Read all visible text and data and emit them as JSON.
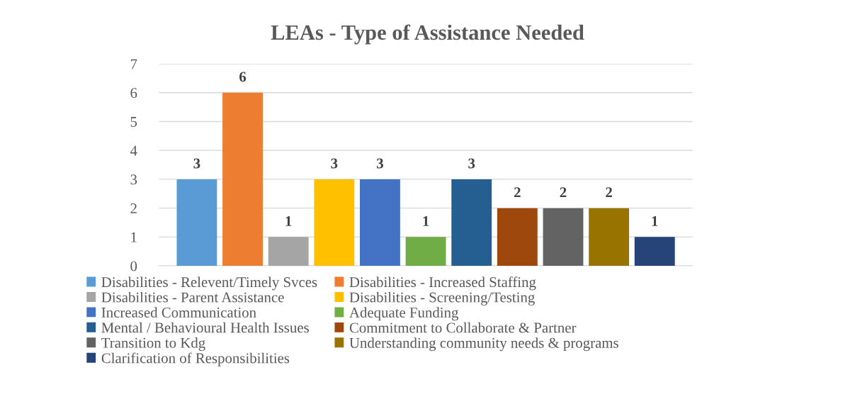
{
  "chart_data": {
    "type": "bar",
    "title": "LEAs - Type of Assistance Needed",
    "categories": [
      null
    ],
    "series": [
      {
        "name": "Disabilities - Relevent/Timely Svces",
        "color": "#5b9bd5",
        "values": [
          3
        ]
      },
      {
        "name": "Disabilities - Increased Staffing",
        "color": "#ed7d31",
        "values": [
          6
        ]
      },
      {
        "name": "Disabilities - Parent Assistance",
        "color": "#a5a5a5",
        "values": [
          1
        ]
      },
      {
        "name": "Disabilities - Screening/Testing",
        "color": "#ffc000",
        "values": [
          3
        ]
      },
      {
        "name": "Increased Communication",
        "color": "#4472c4",
        "values": [
          3
        ]
      },
      {
        "name": "Adequate Funding",
        "color": "#70ad47",
        "values": [
          1
        ]
      },
      {
        "name": "Mental / Behavioural Health Issues",
        "color": "#255e91",
        "values": [
          3
        ]
      },
      {
        "name": "Commitment to Collaborate & Partner",
        "color": "#9e480e",
        "values": [
          2
        ]
      },
      {
        "name": "Transition to Kdg",
        "color": "#636363",
        "values": [
          2
        ]
      },
      {
        "name": "Understanding community needs & programs",
        "color": "#997300",
        "values": [
          2
        ]
      },
      {
        "name": "Clarification of Responsibilities",
        "color": "#264478",
        "values": [
          1
        ]
      }
    ],
    "ylim": [
      0,
      7
    ],
    "yticks": [
      0,
      1,
      2,
      3,
      4,
      5,
      6,
      7
    ],
    "grid": "y",
    "legend": "bottom",
    "data_labels": true
  }
}
